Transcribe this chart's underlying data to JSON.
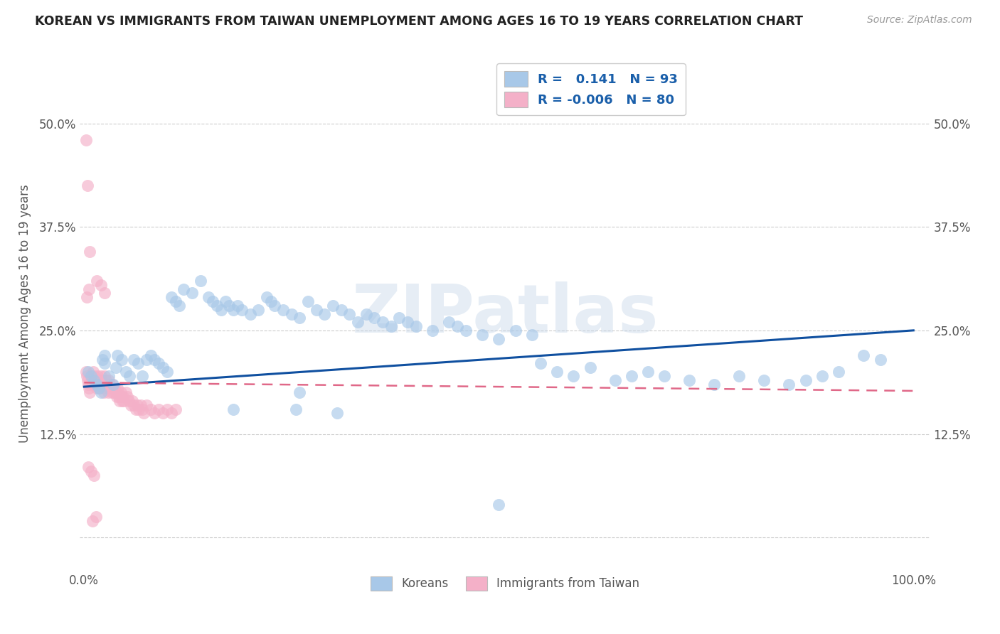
{
  "title": "KOREAN VS IMMIGRANTS FROM TAIWAN UNEMPLOYMENT AMONG AGES 16 TO 19 YEARS CORRELATION CHART",
  "source": "Source: ZipAtlas.com",
  "ylabel": "Unemployment Among Ages 16 to 19 years",
  "xlim": [
    -0.005,
    1.02
  ],
  "ylim": [
    -0.04,
    0.58
  ],
  "xticks": [
    0.0,
    0.25,
    0.5,
    0.75,
    1.0
  ],
  "xticklabels": [
    "0.0%",
    "",
    "",
    "",
    "100.0%"
  ],
  "yticks": [
    0.0,
    0.125,
    0.25,
    0.375,
    0.5
  ],
  "yticklabels": [
    "",
    "12.5%",
    "25.0%",
    "37.5%",
    "50.0%"
  ],
  "korean_R": 0.141,
  "korean_N": 93,
  "taiwan_R": -0.006,
  "taiwan_N": 80,
  "korean_color": "#a8c8e8",
  "taiwan_color": "#f4b0c8",
  "korean_line_color": "#1050a0",
  "taiwan_line_color": "#e06888",
  "watermark": "ZIPatlas",
  "legend_korean": "Koreans",
  "legend_taiwan": "Immigrants from Taiwan",
  "korean_x": [
    0.005,
    0.008,
    0.012,
    0.015,
    0.018,
    0.02,
    0.022,
    0.025,
    0.025,
    0.03,
    0.035,
    0.038,
    0.04,
    0.045,
    0.05,
    0.055,
    0.06,
    0.065,
    0.07,
    0.075,
    0.08,
    0.085,
    0.09,
    0.095,
    0.1,
    0.105,
    0.11,
    0.115,
    0.12,
    0.13,
    0.14,
    0.15,
    0.155,
    0.16,
    0.165,
    0.17,
    0.175,
    0.18,
    0.185,
    0.19,
    0.2,
    0.21,
    0.22,
    0.225,
    0.23,
    0.24,
    0.25,
    0.26,
    0.27,
    0.28,
    0.29,
    0.3,
    0.31,
    0.32,
    0.33,
    0.34,
    0.35,
    0.36,
    0.37,
    0.38,
    0.39,
    0.4,
    0.42,
    0.44,
    0.45,
    0.46,
    0.48,
    0.5,
    0.52,
    0.54,
    0.55,
    0.57,
    0.59,
    0.61,
    0.64,
    0.66,
    0.68,
    0.7,
    0.73,
    0.76,
    0.79,
    0.82,
    0.85,
    0.87,
    0.89,
    0.91,
    0.94,
    0.96,
    0.18,
    0.255,
    0.305,
    0.26,
    0.5
  ],
  "korean_y": [
    0.2,
    0.195,
    0.19,
    0.185,
    0.18,
    0.175,
    0.215,
    0.21,
    0.22,
    0.195,
    0.185,
    0.205,
    0.22,
    0.215,
    0.2,
    0.195,
    0.215,
    0.21,
    0.195,
    0.215,
    0.22,
    0.215,
    0.21,
    0.205,
    0.2,
    0.29,
    0.285,
    0.28,
    0.3,
    0.295,
    0.31,
    0.29,
    0.285,
    0.28,
    0.275,
    0.285,
    0.28,
    0.275,
    0.28,
    0.275,
    0.27,
    0.275,
    0.29,
    0.285,
    0.28,
    0.275,
    0.27,
    0.265,
    0.285,
    0.275,
    0.27,
    0.28,
    0.275,
    0.27,
    0.26,
    0.27,
    0.265,
    0.26,
    0.255,
    0.265,
    0.26,
    0.255,
    0.25,
    0.26,
    0.255,
    0.25,
    0.245,
    0.24,
    0.25,
    0.245,
    0.21,
    0.2,
    0.195,
    0.205,
    0.19,
    0.195,
    0.2,
    0.195,
    0.19,
    0.185,
    0.195,
    0.19,
    0.185,
    0.19,
    0.195,
    0.2,
    0.22,
    0.215,
    0.155,
    0.155,
    0.15,
    0.175,
    0.04
  ],
  "taiwan_x": [
    0.002,
    0.003,
    0.004,
    0.005,
    0.006,
    0.007,
    0.008,
    0.009,
    0.01,
    0.011,
    0.012,
    0.013,
    0.014,
    0.015,
    0.016,
    0.017,
    0.018,
    0.019,
    0.02,
    0.021,
    0.022,
    0.023,
    0.024,
    0.025,
    0.026,
    0.027,
    0.028,
    0.029,
    0.03,
    0.031,
    0.032,
    0.033,
    0.034,
    0.035,
    0.036,
    0.037,
    0.038,
    0.039,
    0.04,
    0.041,
    0.042,
    0.043,
    0.044,
    0.045,
    0.046,
    0.047,
    0.048,
    0.05,
    0.052,
    0.054,
    0.056,
    0.058,
    0.06,
    0.062,
    0.064,
    0.066,
    0.068,
    0.07,
    0.072,
    0.075,
    0.08,
    0.085,
    0.09,
    0.095,
    0.1,
    0.105,
    0.11,
    0.005,
    0.008,
    0.012,
    0.003,
    0.006,
    0.015,
    0.02,
    0.025,
    0.002,
    0.004,
    0.007,
    0.01,
    0.014
  ],
  "taiwan_y": [
    0.2,
    0.195,
    0.19,
    0.185,
    0.18,
    0.175,
    0.195,
    0.19,
    0.185,
    0.2,
    0.195,
    0.19,
    0.185,
    0.18,
    0.195,
    0.19,
    0.185,
    0.18,
    0.195,
    0.19,
    0.185,
    0.18,
    0.175,
    0.195,
    0.19,
    0.185,
    0.18,
    0.175,
    0.19,
    0.185,
    0.18,
    0.175,
    0.185,
    0.18,
    0.175,
    0.18,
    0.175,
    0.17,
    0.18,
    0.175,
    0.17,
    0.165,
    0.175,
    0.17,
    0.165,
    0.17,
    0.165,
    0.175,
    0.17,
    0.165,
    0.16,
    0.165,
    0.16,
    0.155,
    0.16,
    0.155,
    0.16,
    0.155,
    0.15,
    0.16,
    0.155,
    0.15,
    0.155,
    0.15,
    0.155,
    0.15,
    0.155,
    0.085,
    0.08,
    0.075,
    0.29,
    0.3,
    0.31,
    0.305,
    0.295,
    0.48,
    0.425,
    0.345,
    0.02,
    0.025
  ]
}
